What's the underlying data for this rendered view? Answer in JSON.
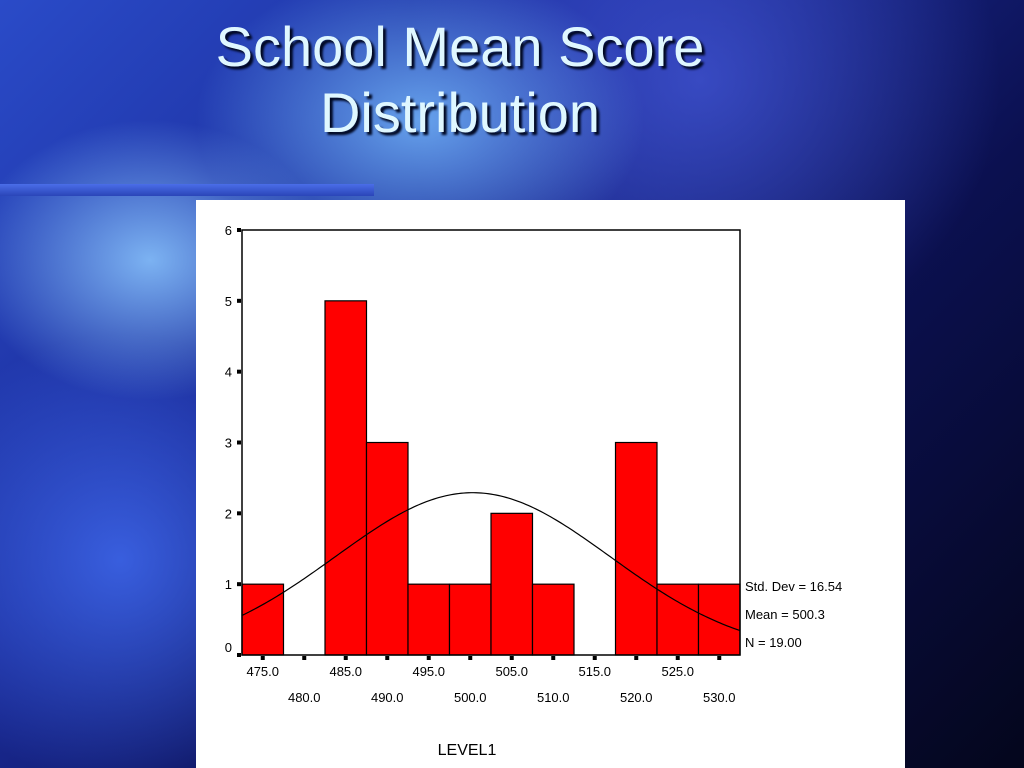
{
  "slide": {
    "title_line1": "School Mean Score",
    "title_line2": "Distribution"
  },
  "chart_data": {
    "type": "bar",
    "subtype": "histogram with normal curve",
    "bin_centers": [
      475,
      480,
      485,
      490,
      495,
      500,
      505,
      510,
      515,
      520,
      525,
      530
    ],
    "values": [
      1,
      0,
      5,
      3,
      1,
      1,
      2,
      1,
      0,
      3,
      1,
      1
    ],
    "x_tick_labels_row1": [
      "475.0",
      "485.0",
      "495.0",
      "505.0",
      "515.0",
      "525.0"
    ],
    "x_tick_labels_row2": [
      "480.0",
      "490.0",
      "500.0",
      "510.0",
      "520.0",
      "530.0"
    ],
    "y_ticks": [
      0,
      1,
      2,
      3,
      4,
      5,
      6
    ],
    "ylim": [
      0,
      6
    ],
    "xlim": [
      472.5,
      532.5
    ],
    "xlabel": "LEVEL1",
    "ylabel": "",
    "grid": false,
    "bar_color": "#ff0000",
    "normal_curve": {
      "mean": 500.3,
      "std_dev": 16.54,
      "n": 19,
      "bin_width": 5
    },
    "stats": {
      "std_dev_label": "Std. Dev = 16.54",
      "mean_label": "Mean = 500.3",
      "n_label": "N = 19.00"
    }
  }
}
